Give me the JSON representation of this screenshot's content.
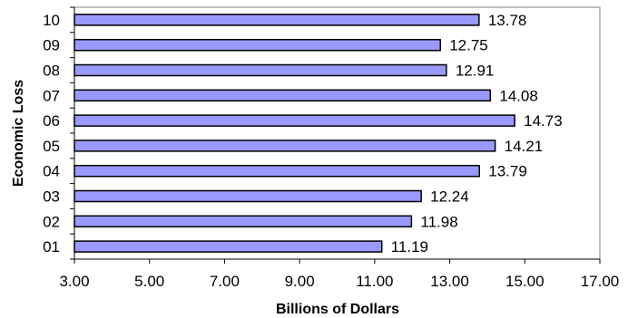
{
  "chart_data": {
    "type": "bar",
    "orientation": "horizontal",
    "categories": [
      "01",
      "02",
      "03",
      "04",
      "05",
      "06",
      "07",
      "08",
      "09",
      "10"
    ],
    "values": [
      11.19,
      11.98,
      12.24,
      13.79,
      14.21,
      14.73,
      14.08,
      12.91,
      12.75,
      13.78
    ],
    "xlabel": "Billions  of Dollars",
    "ylabel": "Economic Loss",
    "xlim": [
      3.0,
      17.0
    ],
    "xticks": [
      "3.00",
      "5.00",
      "7.00",
      "9.00",
      "11.00",
      "13.00",
      "15.00",
      "17.00"
    ],
    "grid": false,
    "legend": "none",
    "bar_color": "#9999ff",
    "bar_edge_color": "#000000"
  }
}
